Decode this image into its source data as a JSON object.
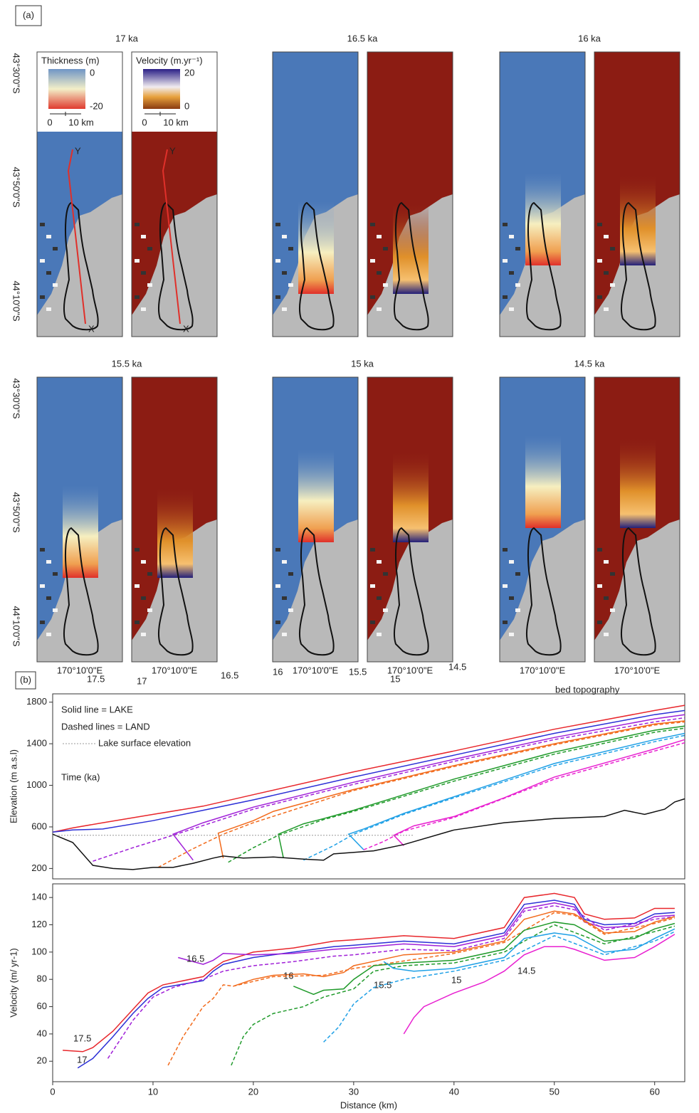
{
  "figure_a": {
    "label": "(a)",
    "panels": [
      {
        "title": "17 ka"
      },
      {
        "title": "16.5 ka"
      },
      {
        "title": "16 ka"
      },
      {
        "title": "15.5 ka"
      },
      {
        "title": "15 ka"
      },
      {
        "title": "14.5 ka"
      }
    ],
    "latitude_labels": [
      "43°30'0\"S",
      "43°50'0\"S",
      "44°10'0\"S"
    ],
    "longitude_label": "170°10'0\"E",
    "thickness_legend": {
      "title": "Thickness (m)",
      "top": "0",
      "bottom": "-20",
      "scale": [
        "0",
        "10 km"
      ]
    },
    "velocity_legend": {
      "title": "Velocity (m.yr⁻¹)",
      "top": "20",
      "bottom": "0",
      "scale": [
        "0",
        "10 km"
      ]
    },
    "profile_ends": [
      "Y",
      "X"
    ]
  },
  "chart_data": [
    {
      "type": "line",
      "panel_label": "(b)",
      "y_label": "Elevation (m a.s.l)",
      "notes": [
        "Solid line = LAKE",
        "Dashed lines = LAND"
      ],
      "annotation": "Time (ka)",
      "xlim": [
        0,
        63
      ],
      "ylim": [
        100,
        1880
      ],
      "yticks": [
        200,
        600,
        1000,
        1400,
        1800
      ],
      "series": [
        {
          "name": "17.5",
          "color": "#e8262b",
          "style": "solid",
          "x": [
            0,
            2,
            5,
            10,
            15,
            20,
            30,
            40,
            50,
            60,
            63
          ],
          "values": [
            550,
            590,
            640,
            720,
            800,
            910,
            1130,
            1330,
            1540,
            1720,
            1770
          ]
        },
        {
          "name": "17",
          "color": "#2b2fd6",
          "style": "solid",
          "x": [
            0,
            2,
            5,
            10,
            15,
            20,
            30,
            40,
            50,
            60,
            63
          ],
          "values": [
            550,
            570,
            580,
            660,
            760,
            860,
            1080,
            1290,
            1500,
            1680,
            1720
          ]
        },
        {
          "name": "16.5",
          "color": "#a020d8",
          "style": "solid",
          "x": [
            14,
            12,
            15,
            20,
            30,
            40,
            50,
            60,
            63
          ],
          "values": [
            280,
            530,
            640,
            790,
            1030,
            1250,
            1460,
            1640,
            1680
          ]
        },
        {
          "color": "#a020d8",
          "style": "dashed",
          "x": [
            4,
            8,
            12,
            20,
            30,
            40,
            50,
            60,
            63
          ],
          "values": [
            270,
            400,
            520,
            770,
            1010,
            1230,
            1440,
            1610,
            1650
          ]
        },
        {
          "name": "16",
          "color": "#f26a1b",
          "style": "solid",
          "x": [
            17,
            16.5,
            20,
            22,
            30,
            40,
            50,
            60,
            63
          ],
          "values": [
            300,
            540,
            660,
            750,
            960,
            1190,
            1400,
            1590,
            1620
          ]
        },
        {
          "color": "#f26a1b",
          "style": "dashed",
          "x": [
            10.5,
            14,
            17,
            20,
            30,
            40,
            50,
            60,
            63
          ],
          "values": [
            210,
            390,
            530,
            640,
            950,
            1180,
            1390,
            1580,
            1610
          ]
        },
        {
          "name": "15.5",
          "color": "#1f9a2a",
          "style": "solid",
          "x": [
            23,
            22.5,
            25,
            27,
            30,
            40,
            50,
            60,
            63
          ],
          "values": [
            300,
            530,
            630,
            680,
            760,
            1060,
            1320,
            1530,
            1570
          ]
        },
        {
          "color": "#1f9a2a",
          "style": "dashed",
          "x": [
            17.5,
            20,
            22.5,
            27,
            30,
            40,
            50,
            60,
            63
          ],
          "values": [
            260,
            400,
            520,
            670,
            750,
            1040,
            1300,
            1510,
            1550
          ]
        },
        {
          "name": "15",
          "color": "#1fa0e6",
          "style": "solid",
          "x": [
            31,
            29.5,
            31,
            35,
            40,
            50,
            60,
            63
          ],
          "values": [
            380,
            530,
            580,
            730,
            890,
            1210,
            1440,
            1500
          ]
        },
        {
          "color": "#1fa0e6",
          "style": "dashed",
          "x": [
            25,
            28,
            30,
            35,
            40,
            50,
            60,
            63
          ],
          "values": [
            280,
            420,
            530,
            720,
            880,
            1190,
            1420,
            1480
          ]
        },
        {
          "name": "14.5",
          "color": "#e81fd0",
          "style": "solid",
          "x": [
            35,
            34,
            36,
            40,
            45,
            50,
            60,
            63
          ],
          "values": [
            420,
            520,
            610,
            700,
            880,
            1080,
            1350,
            1440
          ]
        },
        {
          "color": "#e81fd0",
          "style": "dashed",
          "x": [
            31,
            33,
            35,
            40,
            50,
            60,
            63
          ],
          "values": [
            380,
            460,
            560,
            690,
            1060,
            1330,
            1410
          ]
        },
        {
          "name": "bed topography",
          "color": "#111111",
          "style": "solid",
          "x": [
            0,
            2,
            4,
            6,
            8,
            10,
            12,
            14,
            16,
            17,
            19,
            22,
            25,
            27,
            28,
            32,
            35,
            40,
            45,
            50,
            55,
            57,
            59,
            61,
            62,
            63
          ],
          "values": [
            530,
            450,
            230,
            200,
            190,
            210,
            210,
            250,
            300,
            320,
            300,
            310,
            290,
            280,
            340,
            370,
            430,
            570,
            640,
            680,
            700,
            760,
            720,
            770,
            840,
            870
          ]
        },
        {
          "name": "Lake surface elevation",
          "color": "#999999",
          "style": "dotted",
          "x": [
            0,
            36
          ],
          "values": [
            520,
            520
          ]
        }
      ]
    },
    {
      "type": "line",
      "y_label": "Velocity (m/ yr-1)",
      "x_label": "Distance (km)",
      "xlim": [
        0,
        63
      ],
      "ylim": [
        5,
        150
      ],
      "xticks": [
        0,
        10,
        20,
        30,
        40,
        50,
        60
      ],
      "yticks": [
        20,
        40,
        60,
        80,
        100,
        120,
        140
      ],
      "series": [
        {
          "name": "17.5",
          "color": "#e8262b",
          "style": "solid",
          "x": [
            1,
            3,
            4,
            6,
            8,
            9.5,
            11,
            15,
            16,
            17,
            20,
            24,
            28,
            30,
            35,
            40,
            45,
            47,
            50,
            52,
            53,
            55,
            58,
            60,
            62
          ],
          "values": [
            28,
            27,
            30,
            42,
            58,
            70,
            76,
            82,
            88,
            93,
            100,
            103,
            108,
            109,
            112,
            110,
            118,
            140,
            143,
            140,
            128,
            124,
            125,
            132,
            132
          ]
        },
        {
          "name": "17",
          "color": "#2b2fd6",
          "style": "solid",
          "x": [
            2.5,
            4,
            6,
            8,
            9.5,
            11,
            15,
            16,
            17,
            20,
            24,
            28,
            30,
            35,
            40,
            45,
            47,
            50,
            52,
            53,
            55,
            58,
            60,
            62
          ],
          "values": [
            15,
            22,
            38,
            55,
            66,
            74,
            79,
            86,
            91,
            96,
            100,
            104,
            105,
            108,
            106,
            114,
            135,
            138,
            135,
            124,
            120,
            121,
            128,
            129
          ]
        },
        {
          "name": "16.5",
          "color": "#a020d8",
          "style": "solid",
          "x": [
            12.5,
            15,
            16,
            17,
            20,
            24,
            28,
            30,
            35,
            40,
            45,
            47,
            50,
            52,
            53,
            55,
            58,
            60,
            62
          ],
          "values": [
            96,
            91,
            94,
            99,
            98,
            99,
            102,
            103,
            106,
            104,
            112,
            132,
            136,
            133,
            122,
            118,
            119,
            126,
            127
          ]
        },
        {
          "color": "#a020d8",
          "style": "dashed",
          "x": [
            5.5,
            8,
            10,
            12,
            15,
            17,
            20,
            24,
            28,
            30,
            35,
            40,
            45,
            47,
            50,
            52,
            55,
            60,
            62
          ],
          "values": [
            22,
            50,
            67,
            74,
            80,
            86,
            90,
            93,
            97,
            98,
            102,
            101,
            110,
            130,
            134,
            131,
            116,
            124,
            126
          ]
        },
        {
          "name": "16",
          "color": "#f26a1b",
          "style": "solid",
          "x": [
            18,
            20,
            22,
            25,
            27,
            29,
            30,
            35,
            40,
            45,
            47,
            50,
            52,
            55,
            58,
            60,
            62
          ],
          "values": [
            75,
            80,
            83,
            84,
            82,
            85,
            90,
            98,
            100,
            108,
            124,
            130,
            128,
            114,
            115,
            122,
            126
          ]
        },
        {
          "color": "#f26a1b",
          "style": "dashed",
          "x": [
            11.5,
            13,
            15,
            16,
            17,
            18,
            22,
            27,
            30,
            40,
            45,
            50,
            52,
            55,
            60,
            62
          ],
          "values": [
            17,
            38,
            60,
            66,
            76,
            75,
            82,
            83,
            88,
            99,
            107,
            129,
            127,
            113,
            121,
            125
          ]
        },
        {
          "name": "15.5",
          "color": "#1f9a2a",
          "style": "solid",
          "x": [
            24,
            26,
            27,
            29,
            30,
            32,
            35,
            40,
            45,
            47,
            50,
            52,
            55,
            58,
            60,
            62
          ],
          "values": [
            75,
            69,
            72,
            73,
            80,
            90,
            92,
            94,
            102,
            116,
            122,
            120,
            108,
            110,
            117,
            121
          ]
        },
        {
          "color": "#1f9a2a",
          "style": "dashed",
          "x": [
            17.8,
            19,
            20,
            22,
            25,
            27,
            30,
            32,
            35,
            40,
            45,
            50,
            55,
            60,
            62
          ],
          "values": [
            17,
            38,
            47,
            55,
            60,
            67,
            73,
            86,
            90,
            92,
            100,
            120,
            106,
            115,
            119
          ]
        },
        {
          "name": "15",
          "color": "#1fa0e6",
          "style": "solid",
          "x": [
            33,
            34,
            36,
            40,
            45,
            47,
            50,
            52,
            55,
            58,
            60,
            62
          ],
          "values": [
            93,
            88,
            86,
            88,
            96,
            110,
            114,
            112,
            100,
            102,
            110,
            117
          ]
        },
        {
          "color": "#1fa0e6",
          "style": "dashed",
          "x": [
            27,
            28.5,
            30,
            32,
            35,
            40,
            45,
            50,
            55,
            60,
            62
          ],
          "values": [
            34,
            45,
            62,
            74,
            80,
            86,
            94,
            112,
            98,
            108,
            115
          ]
        },
        {
          "name": "14.5",
          "color": "#e81fd0",
          "style": "solid",
          "x": [
            35,
            36,
            37,
            40,
            43,
            45,
            47,
            49,
            51,
            52,
            55,
            58,
            60,
            62
          ],
          "values": [
            40,
            52,
            60,
            70,
            78,
            86,
            98,
            104,
            104,
            102,
            94,
            96,
            104,
            113
          ]
        }
      ]
    }
  ]
}
